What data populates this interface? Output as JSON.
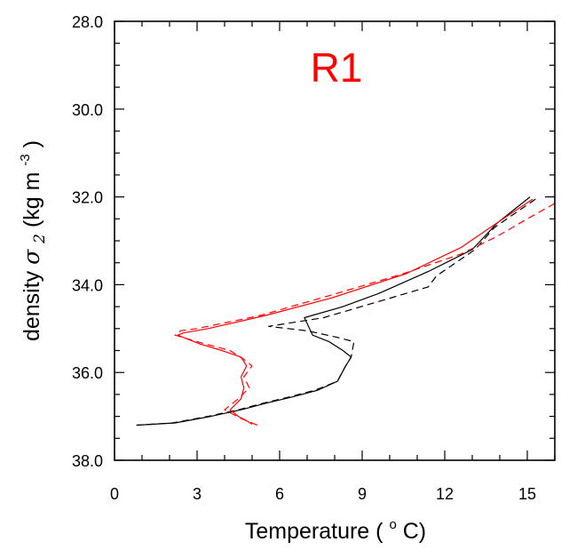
{
  "chart_data": {
    "type": "line",
    "panel_label": "R1",
    "panel_label_color": "#ff0000",
    "xlabel": "Temperature (",
    "xlabel_sup": "o",
    "xlabel_tail": "C)",
    "ylabel_prefix": "density ",
    "ylabel_symbol": "σ",
    "ylabel_symbol_sub": "2",
    "ylabel_units": " (kg m",
    "ylabel_sup": "-3",
    "ylabel_tail": ")",
    "xlim": [
      0,
      16
    ],
    "ylim": [
      28.0,
      38.0
    ],
    "y_inverted": true,
    "x_ticks": [
      0,
      3,
      6,
      9,
      12,
      15
    ],
    "x_tick_labels": [
      "0",
      "3",
      "6",
      "9",
      "12",
      "15"
    ],
    "y_ticks": [
      28.0,
      30.0,
      32.0,
      34.0,
      36.0,
      38.0
    ],
    "y_tick_labels": [
      "28.0",
      "30.0",
      "32.0",
      "34.0",
      "36.0",
      "38.0"
    ],
    "grid": false,
    "series": [
      {
        "color": "#000000",
        "dash": "solid",
        "points": [
          [
            15.1,
            32.0
          ],
          [
            13.9,
            32.6
          ],
          [
            13.0,
            33.2
          ],
          [
            11.4,
            33.7
          ],
          [
            9.6,
            34.2
          ],
          [
            8.3,
            34.5
          ],
          [
            6.9,
            34.75
          ],
          [
            7.2,
            35.15
          ],
          [
            7.8,
            35.3
          ],
          [
            8.3,
            35.5
          ],
          [
            8.6,
            35.65
          ],
          [
            8.4,
            35.85
          ],
          [
            8.1,
            36.2
          ],
          [
            7.4,
            36.4
          ],
          [
            6.5,
            36.55
          ],
          [
            5.5,
            36.7
          ],
          [
            4.6,
            36.85
          ],
          [
            3.5,
            37.0
          ],
          [
            2.2,
            37.15
          ],
          [
            0.8,
            37.2
          ]
        ]
      },
      {
        "color": "#000000",
        "dash": "dashed",
        "points": [
          [
            15.3,
            32.05
          ],
          [
            13.8,
            32.7
          ],
          [
            13.1,
            33.2
          ],
          [
            11.7,
            33.8
          ],
          [
            11.4,
            34.05
          ],
          [
            9.5,
            34.4
          ],
          [
            7.6,
            34.75
          ],
          [
            5.6,
            34.95
          ],
          [
            7.0,
            35.05
          ],
          [
            8.1,
            35.2
          ],
          [
            8.7,
            35.3
          ],
          [
            8.6,
            35.65
          ],
          [
            8.4,
            35.85
          ],
          [
            8.1,
            36.2
          ],
          [
            7.3,
            36.4
          ],
          [
            6.4,
            36.55
          ],
          [
            5.4,
            36.7
          ],
          [
            4.5,
            36.85
          ],
          [
            3.4,
            37.0
          ],
          [
            2.1,
            37.15
          ],
          [
            0.8,
            37.2
          ]
        ]
      },
      {
        "color": "#ff0000",
        "dash": "solid",
        "points": [
          [
            15.2,
            32.05
          ],
          [
            14.0,
            32.55
          ],
          [
            12.6,
            33.15
          ],
          [
            10.6,
            33.75
          ],
          [
            7.9,
            34.3
          ],
          [
            5.5,
            34.7
          ],
          [
            3.4,
            35.0
          ],
          [
            2.5,
            35.1
          ],
          [
            2.3,
            35.15
          ],
          [
            3.1,
            35.35
          ],
          [
            3.9,
            35.5
          ],
          [
            4.6,
            35.65
          ],
          [
            4.8,
            35.85
          ],
          [
            4.6,
            36.1
          ],
          [
            4.7,
            36.35
          ],
          [
            4.6,
            36.6
          ],
          [
            4.2,
            36.85
          ],
          [
            4.5,
            37.0
          ],
          [
            4.8,
            37.1
          ],
          [
            5.0,
            37.18
          ]
        ]
      },
      {
        "color": "#ff0000",
        "dash": "dashed",
        "points": [
          [
            16.0,
            32.15
          ],
          [
            15.0,
            32.5
          ],
          [
            13.9,
            32.9
          ],
          [
            12.6,
            33.3
          ],
          [
            10.5,
            33.75
          ],
          [
            7.8,
            34.25
          ],
          [
            5.3,
            34.7
          ],
          [
            3.0,
            35.0
          ],
          [
            2.4,
            35.05
          ],
          [
            2.2,
            35.15
          ],
          [
            3.3,
            35.35
          ],
          [
            4.2,
            35.5
          ],
          [
            4.7,
            35.7
          ],
          [
            5.0,
            35.85
          ],
          [
            4.7,
            36.1
          ],
          [
            4.9,
            36.35
          ],
          [
            4.5,
            36.6
          ],
          [
            4.0,
            36.85
          ],
          [
            4.6,
            37.05
          ],
          [
            5.2,
            37.2
          ]
        ]
      }
    ]
  }
}
